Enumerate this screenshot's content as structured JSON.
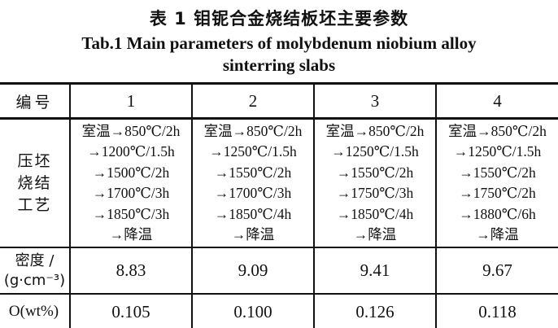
{
  "title": {
    "chinese": "表 1  钼铌合金烧结板坯主要参数",
    "english_line1": "Tab.1  Main parameters of molybdenum niobium alloy",
    "english_line2": "sinterring slabs"
  },
  "table": {
    "header": {
      "label": "编号",
      "columns": [
        "1",
        "2",
        "3",
        "4"
      ]
    },
    "process": {
      "label_lines": [
        "压坯",
        "烧结",
        "工艺"
      ],
      "cells": [
        [
          "室温→850℃/2h",
          "→1200℃/1.5h",
          "→1500℃/2h",
          "→1700℃/3h",
          "→1850℃/3h",
          "→降温"
        ],
        [
          "室温→850℃/2h",
          "→1250℃/1.5h",
          "→1550℃/2h",
          "→1700℃/3h",
          "→1850℃/4h",
          "→降温"
        ],
        [
          "室温→850℃/2h",
          "→1250℃/1.5h",
          "→1550℃/2h",
          "→1750℃/3h",
          "→1850℃/4h",
          "→降温"
        ],
        [
          "室温→850℃/2h",
          "→1250℃/1.5h",
          "→1550℃/2h",
          "→1750℃/2h",
          "→1880℃/6h",
          "→降温"
        ]
      ]
    },
    "density": {
      "label_line1": "密度 /",
      "label_line2": "(g·cm⁻³)",
      "values": [
        "8.83",
        "9.09",
        "9.41",
        "9.67"
      ]
    },
    "oxygen": {
      "label": "O(wt%)",
      "values": [
        "0.105",
        "0.100",
        "0.126",
        "0.118"
      ]
    }
  },
  "colors": {
    "text": "#111111",
    "rule": "#111111",
    "background": "#ffffff"
  }
}
